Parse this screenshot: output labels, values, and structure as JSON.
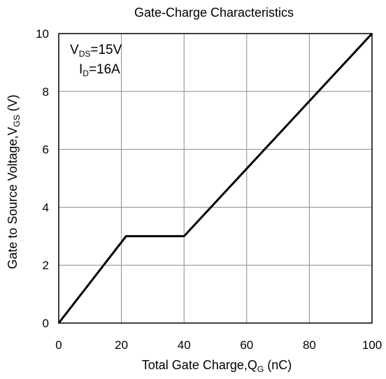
{
  "chart_data": {
    "type": "line",
    "title": "Gate-Charge Characteristics",
    "xlabel": {
      "main": "Total Gate Charge,Q",
      "sub": "G",
      "tail": " (nC)"
    },
    "ylabel": {
      "main": "Gate to Source Voltage,V",
      "sub": "GS",
      "tail": " (V)"
    },
    "xlim": [
      0,
      100
    ],
    "ylim": [
      0,
      10
    ],
    "x_ticks": [
      "0",
      "20",
      "40",
      "60",
      "80",
      "100"
    ],
    "y_ticks": [
      "0",
      "2",
      "4",
      "6",
      "8",
      "10"
    ],
    "grid": true,
    "annotations": [
      {
        "main": "V",
        "sub": "DS",
        "tail": "=15V"
      },
      {
        "main": "I",
        "sub": "D",
        "tail": "=16A"
      }
    ],
    "series": [
      {
        "x": [
          0,
          21.5,
          40,
          100
        ],
        "y": [
          0,
          3.0,
          3.0,
          10
        ]
      }
    ]
  }
}
